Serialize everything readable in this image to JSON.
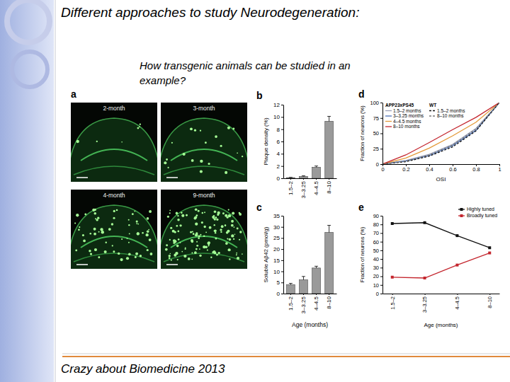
{
  "slide": {
    "title": "Different approaches to study Neurodegeneration:",
    "subtitle": "How transgenic animals can be studied in an example?",
    "footer": "Crazy about Biomedicine 2013",
    "panel_a": {
      "label": "a",
      "images": [
        "2-month",
        "3-month",
        "4-month",
        "9-month"
      ]
    }
  },
  "chart_data": [
    {
      "type": "bar",
      "title": "b",
      "categories": [
        "1.5–2",
        "3–3.25",
        "4–4.5",
        "8–10"
      ],
      "values": [
        0.1,
        0.3,
        1.8,
        9.3
      ],
      "errors": [
        0.05,
        0.1,
        0.2,
        0.8
      ],
      "y_label": "Plaque density (%)",
      "ylim": [
        0,
        12
      ],
      "yticks": [
        0,
        2,
        4,
        6,
        8,
        10,
        12
      ],
      "color": "#9a9a9a"
    },
    {
      "type": "bar",
      "title": "c",
      "categories": [
        "1.5–2",
        "3–3.25",
        "4–4.5",
        "8–10"
      ],
      "values": [
        4,
        6.2,
        11.5,
        27.5
      ],
      "errors": [
        0.6,
        1.5,
        0.8,
        3.2
      ],
      "x_label": "Age (months)",
      "y_label": "Soluble Aβ42 (pmol/g)",
      "ylim": [
        0,
        35
      ],
      "yticks": [
        0,
        5,
        10,
        15,
        20,
        25,
        30,
        35
      ],
      "color": "#9a9a9a"
    },
    {
      "type": "line",
      "title": "d",
      "x": [
        0,
        0.2,
        0.4,
        0.6,
        0.8,
        1
      ],
      "xlim": [
        0,
        1
      ],
      "xticks": [
        0,
        0.2,
        0.4,
        0.6,
        0.8,
        1
      ],
      "ylim": [
        0,
        100
      ],
      "yticks": [
        0,
        25,
        50,
        75,
        100
      ],
      "x_label": "OSI",
      "y_label": "Fraction of neurons (%)",
      "annotations": [
        "APP23xPS45",
        "WT"
      ],
      "legend": "upper left",
      "series": [
        {
          "name": "1.5–2 months",
          "color": "#9aa0b8",
          "values": [
            0,
            6,
            16,
            32,
            58,
            100
          ],
          "line_style": "solid"
        },
        {
          "name": "3–3.25 months",
          "color": "#4d72b8",
          "values": [
            0,
            5,
            14,
            30,
            55,
            100
          ],
          "line_style": "solid"
        },
        {
          "name": "4–4.5 months",
          "color": "#e39a3a",
          "values": [
            0,
            10,
            26,
            46,
            68,
            100
          ],
          "line_style": "solid"
        },
        {
          "name": "8–10 months",
          "color": "#c4262e",
          "values": [
            0,
            15,
            35,
            56,
            76,
            100
          ],
          "line_style": "solid"
        },
        {
          "name": "1.5–2 months",
          "color": "#111111",
          "values": [
            0,
            4,
            13,
            28,
            54,
            100
          ],
          "line_style": "dashed"
        },
        {
          "name": "8–10 months",
          "color": "#777777",
          "values": [
            0,
            5,
            15,
            31,
            57,
            100
          ],
          "line_style": "dashed"
        }
      ]
    },
    {
      "type": "line",
      "title": "e",
      "categories": [
        "1.5–2",
        "3–3.25",
        "4–4.5",
        "8–10"
      ],
      "ylim": [
        0,
        90
      ],
      "yticks": [
        0,
        10,
        20,
        30,
        40,
        50,
        60,
        70,
        80,
        90
      ],
      "x_label": "Age (months)",
      "y_label": "Fraction of neurons (%)",
      "legend": "upper right",
      "series": [
        {
          "name": "Highly tuned",
          "color": "#111111",
          "values": [
            81,
            82,
            67,
            53
          ],
          "marker": "square"
        },
        {
          "name": "Broadly tuned",
          "color": "#c4262e",
          "values": [
            19,
            18,
            33,
            47
          ],
          "marker": "square"
        }
      ]
    }
  ]
}
